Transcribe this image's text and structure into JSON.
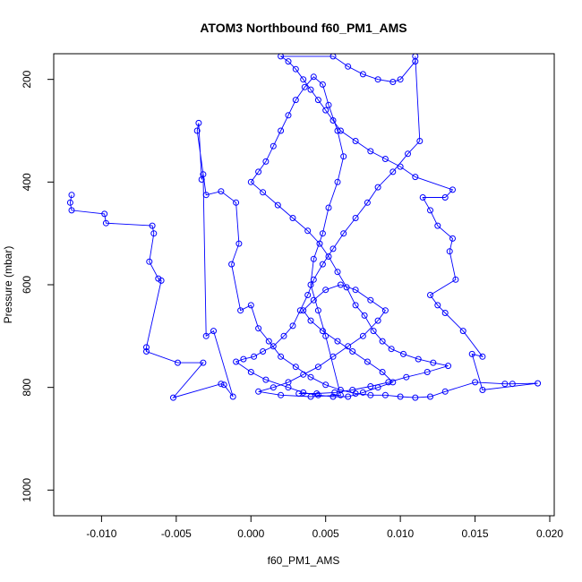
{
  "chart_data": {
    "type": "scatter",
    "title": "ATOM3 Northbound f60_PM1_AMS",
    "xlabel": "f60_PM1_AMS",
    "ylabel": "Pressure (mbar)",
    "xlim": [
      -0.0132,
      0.0203
    ],
    "ylim": [
      1050,
      150
    ],
    "y_reversed": true,
    "x_ticks": [
      -0.01,
      -0.005,
      0.0,
      0.005,
      0.01,
      0.015,
      0.02
    ],
    "x_tick_labels": [
      "-0.010",
      "-0.005",
      "0.000",
      "0.005",
      "0.010",
      "0.015",
      "0.020"
    ],
    "y_ticks": [
      200,
      400,
      600,
      800,
      1000
    ],
    "y_tick_labels": [
      "200",
      "400",
      "600",
      "800",
      "1000"
    ],
    "series_color": "#0000ff",
    "marker": "open-circle",
    "connected_by_lines": true,
    "grid": false,
    "legend": "none",
    "series": [
      {
        "points": [
          [
            -0.012,
            425
          ],
          [
            -0.0121,
            440
          ],
          [
            -0.012,
            455
          ],
          [
            -0.0098,
            462
          ],
          [
            -0.0097,
            480
          ],
          [
            -0.0066,
            485
          ],
          [
            -0.0065,
            500
          ],
          [
            -0.0068,
            555
          ],
          [
            -0.0062,
            588
          ],
          [
            -0.006,
            592
          ],
          [
            -0.007,
            722
          ],
          [
            -0.007,
            730
          ],
          [
            -0.0049,
            752
          ],
          [
            -0.0032,
            752
          ],
          [
            -0.0052,
            820
          ],
          [
            -0.002,
            793
          ],
          [
            -0.0018,
            795
          ],
          [
            -0.0012,
            818
          ],
          [
            -0.0025,
            690
          ],
          [
            -0.003,
            700
          ],
          [
            -0.0032,
            385
          ],
          [
            -0.0033,
            395
          ],
          [
            -0.0035,
            285
          ],
          [
            -0.0036,
            300
          ],
          [
            -0.003,
            425
          ],
          [
            -0.002,
            418
          ],
          [
            -0.001,
            440
          ],
          [
            -0.0008,
            520
          ],
          [
            -0.0013,
            560
          ],
          [
            -0.0007,
            650
          ],
          [
            0.0,
            640
          ],
          [
            0.0005,
            685
          ],
          [
            0.0012,
            710
          ],
          [
            0.002,
            740
          ],
          [
            0.003,
            760
          ],
          [
            0.004,
            780
          ],
          [
            0.005,
            795
          ],
          [
            0.006,
            805
          ],
          [
            0.007,
            812
          ],
          [
            0.008,
            815
          ],
          [
            0.009,
            815
          ],
          [
            0.01,
            818
          ],
          [
            0.011,
            820
          ],
          [
            0.012,
            818
          ],
          [
            0.013,
            808
          ],
          [
            0.015,
            790
          ],
          [
            0.017,
            793
          ],
          [
            0.0175,
            793
          ],
          [
            0.0192,
            792
          ],
          [
            0.0155,
            805
          ],
          [
            0.0148,
            735
          ],
          [
            0.0155,
            740
          ],
          [
            0.0142,
            690
          ],
          [
            0.013,
            655
          ],
          [
            0.0125,
            640
          ],
          [
            0.012,
            620
          ],
          [
            0.0137,
            590
          ],
          [
            0.0133,
            535
          ],
          [
            0.0135,
            510
          ],
          [
            0.0125,
            485
          ],
          [
            0.012,
            455
          ],
          [
            0.0115,
            430
          ],
          [
            0.013,
            430
          ],
          [
            0.0135,
            415
          ],
          [
            0.011,
            390
          ],
          [
            0.01,
            370
          ],
          [
            0.009,
            355
          ],
          [
            0.008,
            340
          ],
          [
            0.007,
            320
          ],
          [
            0.006,
            300
          ],
          [
            0.0055,
            280
          ],
          [
            0.005,
            260
          ],
          [
            0.0045,
            240
          ],
          [
            0.004,
            220
          ],
          [
            0.0035,
            200
          ],
          [
            0.003,
            180
          ],
          [
            0.0025,
            165
          ],
          [
            0.002,
            155
          ],
          [
            0.0055,
            155
          ],
          [
            0.0065,
            175
          ],
          [
            0.0075,
            190
          ],
          [
            0.0085,
            200
          ],
          [
            0.0095,
            205
          ],
          [
            0.01,
            200
          ],
          [
            0.011,
            165
          ],
          [
            0.011,
            155
          ],
          [
            0.0113,
            320
          ],
          [
            0.0105,
            345
          ],
          [
            0.0095,
            380
          ],
          [
            0.0085,
            410
          ],
          [
            0.0078,
            440
          ],
          [
            0.007,
            470
          ],
          [
            0.0062,
            500
          ],
          [
            0.0055,
            530
          ],
          [
            0.0048,
            560
          ],
          [
            0.0042,
            590
          ],
          [
            0.0038,
            620
          ],
          [
            0.0033,
            650
          ],
          [
            0.0028,
            680
          ],
          [
            0.0022,
            700
          ],
          [
            0.0015,
            720
          ],
          [
            0.0008,
            730
          ],
          [
            0.0002,
            740
          ],
          [
            -0.0005,
            745
          ],
          [
            -0.001,
            750
          ],
          [
            0.0,
            770
          ],
          [
            0.001,
            785
          ],
          [
            0.0025,
            800
          ],
          [
            0.0035,
            810
          ],
          [
            0.0045,
            815
          ],
          [
            0.0055,
            818
          ],
          [
            0.0065,
            818
          ],
          [
            0.0075,
            810
          ],
          [
            0.0085,
            800
          ],
          [
            0.0095,
            790
          ],
          [
            0.0088,
            770
          ],
          [
            0.0078,
            750
          ],
          [
            0.0068,
            730
          ],
          [
            0.0058,
            710
          ],
          [
            0.0048,
            690
          ],
          [
            0.004,
            670
          ],
          [
            0.0035,
            650
          ],
          [
            0.0042,
            630
          ],
          [
            0.005,
            610
          ],
          [
            0.006,
            600
          ],
          [
            0.007,
            610
          ],
          [
            0.008,
            630
          ],
          [
            0.009,
            650
          ],
          [
            0.0085,
            670
          ],
          [
            0.0075,
            700
          ],
          [
            0.0065,
            720
          ],
          [
            0.0055,
            740
          ],
          [
            0.0045,
            760
          ],
          [
            0.0035,
            775
          ],
          [
            0.0025,
            790
          ],
          [
            0.0015,
            800
          ],
          [
            0.0005,
            808
          ],
          [
            0.002,
            815
          ],
          [
            0.004,
            818
          ],
          [
            0.006,
            815
          ],
          [
            0.005,
            700
          ],
          [
            0.0045,
            650
          ],
          [
            0.004,
            600
          ],
          [
            0.0042,
            550
          ],
          [
            0.0048,
            500
          ],
          [
            0.0052,
            450
          ],
          [
            0.0058,
            400
          ],
          [
            0.0062,
            350
          ],
          [
            0.0058,
            300
          ],
          [
            0.0052,
            250
          ],
          [
            0.0048,
            210
          ],
          [
            0.0042,
            195
          ],
          [
            0.0036,
            215
          ],
          [
            0.003,
            240
          ],
          [
            0.0025,
            270
          ],
          [
            0.002,
            300
          ],
          [
            0.0015,
            330
          ],
          [
            0.001,
            360
          ],
          [
            0.0005,
            380
          ],
          [
            0.0,
            400
          ],
          [
            0.0008,
            420
          ],
          [
            0.0018,
            445
          ],
          [
            0.0028,
            470
          ],
          [
            0.0038,
            495
          ],
          [
            0.0046,
            520
          ],
          [
            0.0052,
            545
          ],
          [
            0.0058,
            575
          ],
          [
            0.0064,
            605
          ],
          [
            0.007,
            640
          ],
          [
            0.0076,
            660
          ],
          [
            0.0082,
            690
          ],
          [
            0.0088,
            710
          ],
          [
            0.0094,
            725
          ],
          [
            0.0102,
            735
          ],
          [
            0.0112,
            745
          ],
          [
            0.0122,
            752
          ],
          [
            0.0132,
            758
          ],
          [
            0.0118,
            770
          ],
          [
            0.0104,
            780
          ],
          [
            0.0092,
            790
          ],
          [
            0.008,
            798
          ],
          [
            0.0068,
            805
          ],
          [
            0.0056,
            810
          ],
          [
            0.0044,
            812
          ],
          [
            0.0032,
            812
          ]
        ]
      }
    ]
  }
}
